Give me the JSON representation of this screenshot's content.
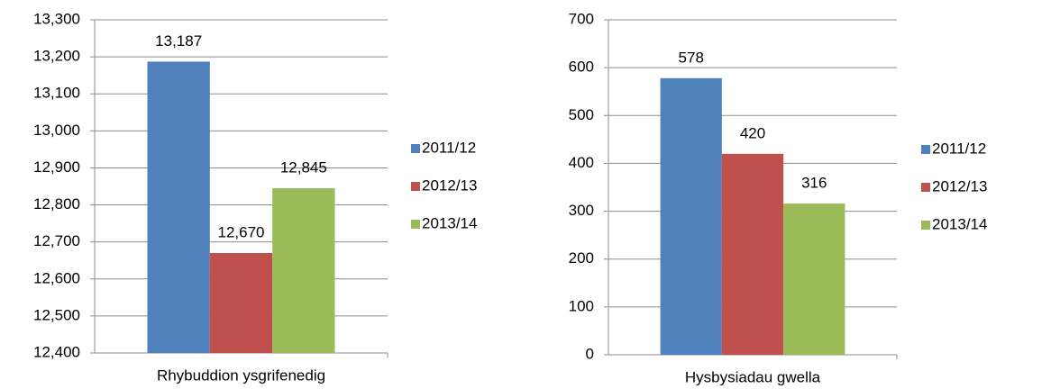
{
  "chart_data": [
    {
      "type": "bar",
      "categories": [
        "Rhybuddion ysgrifenedig"
      ],
      "series": [
        {
          "name": "2011/12",
          "color": "#4f81bd",
          "values": [
            13187
          ],
          "value_labels": [
            "13,187"
          ]
        },
        {
          "name": "2012/13",
          "color": "#c0504d",
          "values": [
            12670
          ],
          "value_labels": [
            "12,670"
          ]
        },
        {
          "name": "2013/14",
          "color": "#9bbb59",
          "values": [
            12845
          ],
          "value_labels": [
            "12,845"
          ]
        }
      ],
      "ylim": [
        12400,
        13300
      ],
      "yticks": [
        {
          "value": 12400,
          "label": "12,400"
        },
        {
          "value": 12500,
          "label": "12,500"
        },
        {
          "value": 12600,
          "label": "12,600"
        },
        {
          "value": 12700,
          "label": "12,700"
        },
        {
          "value": 12800,
          "label": "12,800"
        },
        {
          "value": 12900,
          "label": "12,900"
        },
        {
          "value": 13000,
          "label": "13,000"
        },
        {
          "value": 13100,
          "label": "13,100"
        },
        {
          "value": 13200,
          "label": "13,200"
        },
        {
          "value": 13300,
          "label": "13,300"
        }
      ],
      "grid": true,
      "legend": "right"
    },
    {
      "type": "bar",
      "categories": [
        "Hysbysiadau gwella"
      ],
      "series": [
        {
          "name": "2011/12",
          "color": "#4f81bd",
          "values": [
            578
          ]
        },
        {
          "name": "2012/13",
          "color": "#c0504d",
          "values": [
            420
          ]
        },
        {
          "name": "2013/14",
          "color": "#9bbb59",
          "values": [
            316
          ]
        }
      ],
      "ylim": [
        0,
        700
      ],
      "yticks": [
        0,
        100,
        200,
        300,
        400,
        500,
        600,
        700
      ],
      "grid": true,
      "legend": "right"
    }
  ]
}
